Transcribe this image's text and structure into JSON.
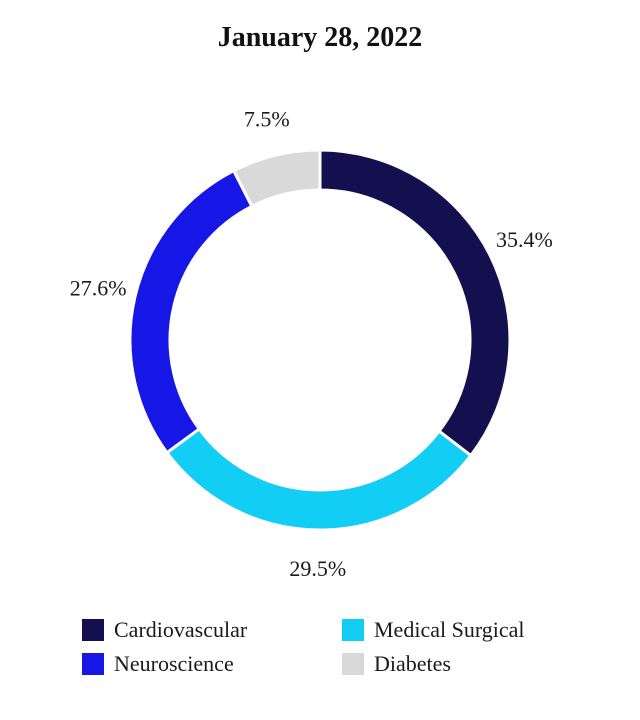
{
  "chart_data": {
    "type": "pie",
    "title": "January 28, 2022",
    "categories": [
      "Cardiovascular",
      "Medical Surgical",
      "Neuroscience",
      "Diabetes"
    ],
    "values": [
      35.4,
      29.5,
      27.6,
      7.5
    ],
    "labels": [
      "35.4%",
      "29.5%",
      "27.6%",
      "7.5%"
    ],
    "colors": [
      "#14104f",
      "#12cdf4",
      "#1616e6",
      "#d9d9d9"
    ],
    "donut": true,
    "legend_position": "bottom"
  },
  "legend": {
    "items": [
      {
        "label": "Cardiovascular",
        "color": "#14104f"
      },
      {
        "label": "Medical Surgical",
        "color": "#12cdf4"
      },
      {
        "label": "Neuroscience",
        "color": "#1616e6"
      },
      {
        "label": "Diabetes",
        "color": "#d9d9d9"
      }
    ]
  }
}
